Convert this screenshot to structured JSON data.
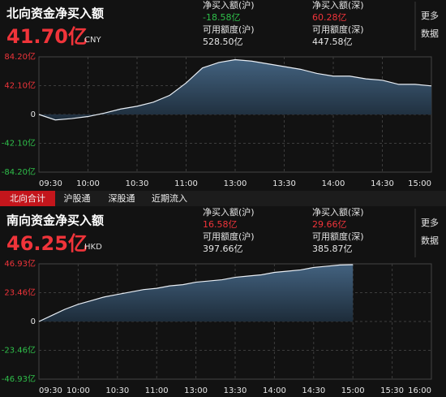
{
  "tabs": [
    "北向合计",
    "沪股通",
    "深股通",
    "近期流入"
  ],
  "selected_tab": 0,
  "more": [
    "更多",
    "数据"
  ],
  "north": {
    "title": "北向资金净买入额",
    "amount": "41.70亿",
    "currency": "CNY",
    "stats": [
      {
        "label": "净买入额(沪)",
        "value": "-18.58亿",
        "color": "#2fbf4a"
      },
      {
        "label": "净买入额(深)",
        "value": "60.28亿",
        "color": "#f0343a"
      },
      {
        "label": "可用额度(沪)",
        "value": "528.50亿",
        "color": "#e6e6e6"
      },
      {
        "label": "可用额度(深)",
        "value": "447.58亿",
        "color": "#e6e6e6"
      }
    ],
    "chart_data": {
      "type": "area",
      "categories": [
        "09:30",
        null,
        null,
        "10:00",
        null,
        null,
        "10:30",
        null,
        null,
        "11:00",
        null,
        null,
        "13:00",
        null,
        null,
        "13:30",
        null,
        null,
        "14:00",
        null,
        null,
        "14:30",
        null,
        null,
        "15:00"
      ],
      "values": [
        0,
        -8,
        -6,
        -3,
        2,
        8,
        12,
        18,
        28,
        46,
        68,
        76,
        80,
        78,
        74,
        70,
        66,
        60,
        56,
        56,
        52,
        50,
        44,
        44,
        41.7
      ],
      "color": "#e8eef5",
      "ylim": [
        -84.2,
        84.2
      ],
      "yticks": [
        {
          "value": 84.2,
          "label": "84.20亿"
        },
        {
          "value": 42.1,
          "label": "42.10亿"
        },
        0,
        {
          "value": -42.1,
          "label": "-42.10亿"
        },
        {
          "value": -84.2,
          "label": "-84.20亿"
        }
      ],
      "grid": true
    }
  },
  "south": {
    "title": "南向资金净买入额",
    "amount": "46.25亿",
    "currency": "HKD",
    "stats": [
      {
        "label": "净买入额(沪)",
        "value": "16.58亿",
        "color": "#f0343a"
      },
      {
        "label": "净买入额(深)",
        "value": "29.66亿",
        "color": "#f0343a"
      },
      {
        "label": "可用额度(沪)",
        "value": "397.66亿",
        "color": "#e6e6e6"
      },
      {
        "label": "可用额度(深)",
        "value": "385.87亿",
        "color": "#e6e6e6"
      }
    ],
    "chart_data": {
      "type": "area",
      "categories": [
        "09:30",
        null,
        null,
        "10:00",
        null,
        null,
        "10:30",
        null,
        null,
        "11:00",
        null,
        null,
        "13:00",
        null,
        null,
        "13:30",
        null,
        null,
        "14:00",
        null,
        null,
        "14:30",
        null,
        null,
        "15:00",
        null,
        null,
        "15:30",
        null,
        null,
        "16:00"
      ],
      "values": [
        0,
        5,
        10,
        14,
        17,
        20,
        22,
        24,
        26,
        27,
        29,
        30,
        32,
        33,
        34,
        36,
        37,
        38,
        40,
        41,
        42,
        44,
        45,
        46,
        46.25,
        null,
        null,
        null,
        null,
        null,
        null
      ],
      "color": "#e8eef5",
      "ylim": [
        -46.93,
        46.93
      ],
      "yticks": [
        {
          "value": 46.93,
          "label": "46.93亿"
        },
        {
          "value": 23.46,
          "label": "23.46亿"
        },
        0,
        {
          "value": -23.46,
          "label": "-23.46亿"
        },
        {
          "value": -46.93,
          "label": "-46.93亿"
        }
      ],
      "grid": true
    }
  }
}
